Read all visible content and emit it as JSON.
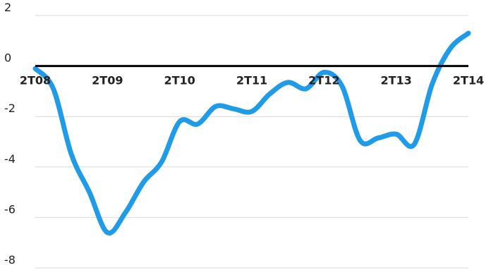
{
  "chart_data": {
    "type": "line",
    "title": "",
    "xlabel": "",
    "ylabel": "",
    "ylim": [
      -8,
      2
    ],
    "yticks": [
      "2",
      "0",
      "-2",
      "-4",
      "-6",
      "-8"
    ],
    "ytick_values": [
      2,
      0,
      -2,
      -4,
      -6,
      -8
    ],
    "xlim": [
      2008.25,
      2014.25
    ],
    "xtick_labels": [
      "2T08",
      "2T09",
      "2T10",
      "2T11",
      "2T12",
      "2T13",
      "2T14"
    ],
    "xtick_values": [
      2008.25,
      2009.25,
      2010.25,
      2011.25,
      2012.25,
      2013.25,
      2014.25
    ],
    "grid": true,
    "legend": "none",
    "series": [
      {
        "color": "#1f9be8",
        "x": [
          2008.25,
          2008.5,
          2008.75,
          2009.0,
          2009.25,
          2009.5,
          2009.75,
          2010.0,
          2010.25,
          2010.5,
          2010.75,
          2011.0,
          2011.25,
          2011.5,
          2011.75,
          2012.0,
          2012.25,
          2012.5,
          2012.75,
          2013.0,
          2013.25,
          2013.5,
          2013.75,
          2014.0,
          2014.25
        ],
        "values": [
          -0.1,
          -0.9,
          -3.5,
          -5.0,
          -6.6,
          -5.8,
          -4.6,
          -3.8,
          -2.2,
          -2.3,
          -1.6,
          -1.7,
          -1.8,
          -1.1,
          -0.65,
          -0.9,
          -0.25,
          -0.8,
          -2.95,
          -2.85,
          -2.7,
          -3.1,
          -0.7,
          0.7,
          1.3
        ]
      }
    ]
  }
}
